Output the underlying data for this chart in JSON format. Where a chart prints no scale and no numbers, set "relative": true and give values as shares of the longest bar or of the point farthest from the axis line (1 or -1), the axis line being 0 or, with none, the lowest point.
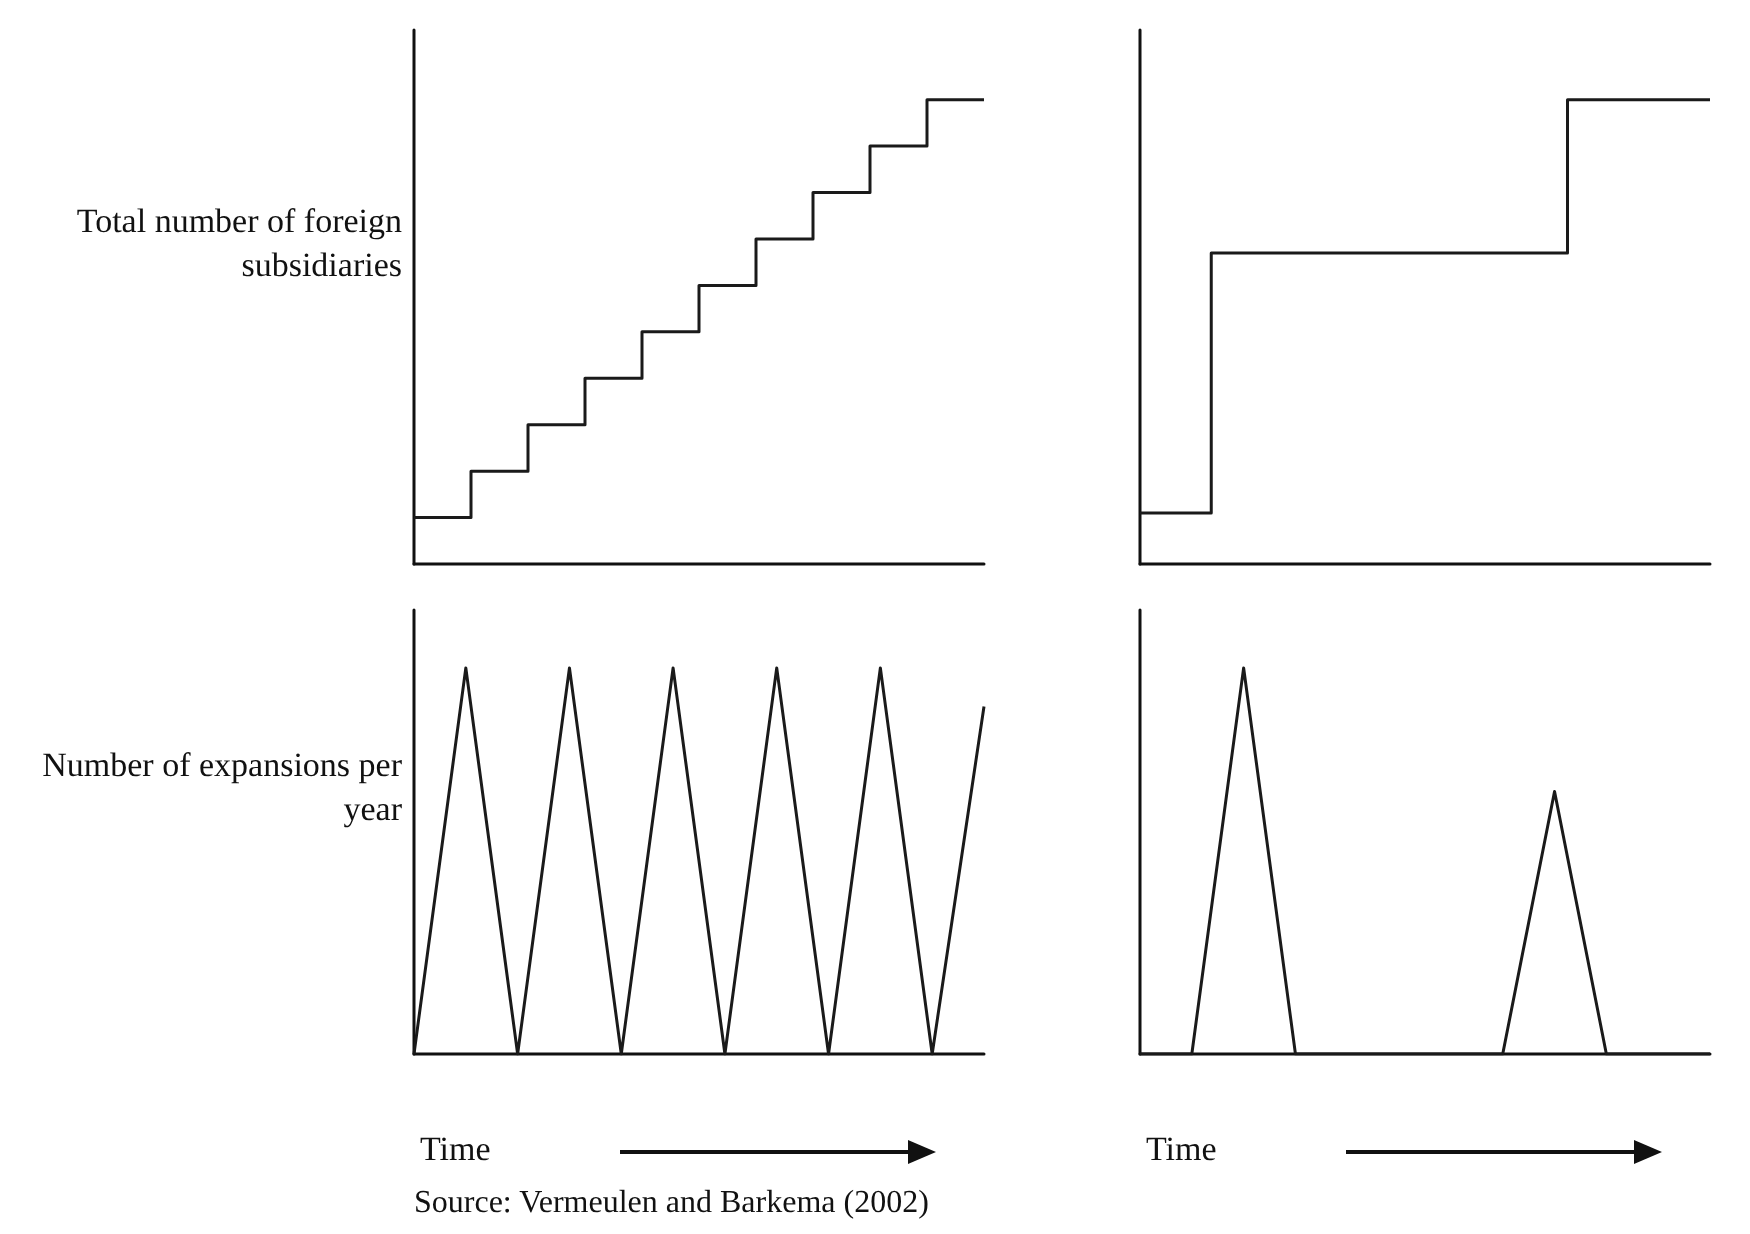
{
  "chart_data": [
    {
      "type": "step",
      "ylabel": "Total number of foreign subsidiaries",
      "relative": true,
      "categories": [
        null,
        null,
        null,
        null,
        null,
        null,
        null,
        null,
        null,
        null,
        null
      ],
      "values": [
        0.1,
        0.2,
        0.3,
        0.4,
        0.5,
        0.6,
        0.7,
        0.8,
        0.9,
        1.0,
        1.0
      ],
      "color": "#1a1a1a",
      "marker": "none",
      "grid": false,
      "tick_labels": false
    },
    {
      "type": "step",
      "relative": true,
      "categories": [
        null,
        null,
        null,
        null,
        null,
        null,
        null,
        null,
        null
      ],
      "values": [
        0.11,
        0.67,
        0.67,
        0.67,
        0.67,
        0.67,
        1.0,
        1.0,
        1.0
      ],
      "color": "#1a1a1a",
      "marker": "none",
      "grid": false,
      "tick_labels": false
    },
    {
      "type": "line",
      "ylabel": "Number of expansions per year",
      "xlabel": "Time",
      "relative": true,
      "categories": [
        null,
        null,
        null,
        null,
        null,
        null,
        null,
        null,
        null,
        null,
        null,
        null
      ],
      "values": [
        0,
        1,
        0,
        1,
        0,
        1,
        0,
        1,
        0,
        1,
        0,
        0.9
      ],
      "color": "#1a1a1a",
      "marker": "none",
      "grid": false,
      "tick_labels": false,
      "annotations": [
        "Source: Vermeulen and Barkema (2002)"
      ]
    },
    {
      "type": "line",
      "xlabel": "Time",
      "relative": true,
      "categories": [
        null,
        null,
        null,
        null,
        null,
        null,
        null,
        null,
        null,
        null,
        null,
        null
      ],
      "values": [
        0,
        0,
        1,
        0,
        0,
        0,
        0,
        0,
        0.68,
        0,
        0,
        0
      ],
      "color": "#1a1a1a",
      "marker": "none",
      "grid": false,
      "tick_labels": false
    }
  ]
}
